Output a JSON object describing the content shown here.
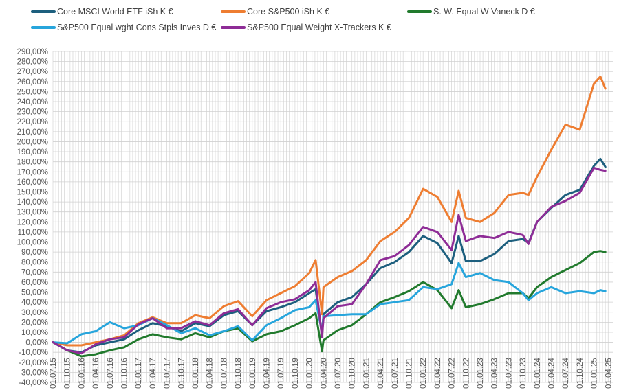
{
  "chart_data": {
    "type": "line",
    "title": "",
    "xlabel": "",
    "ylabel": "",
    "ylim": [
      -40,
      290
    ],
    "ystep": 10,
    "grid": true,
    "legend_position": "top",
    "x_unit": "quarter index from 01.07.15",
    "x_tick_labels": [
      "01.07.15",
      "01.10.15",
      "01.01.16",
      "01.04.16",
      "01.07.16",
      "01.10.16",
      "01.01.17",
      "01.04.17",
      "01.07.17",
      "01.10.17",
      "01.01.18",
      "01.04.18",
      "01.07.18",
      "01.10.18",
      "01.01.19",
      "01.04.19",
      "01.07.19",
      "01.10.19",
      "01.01.20",
      "01.04.20",
      "01.07.20",
      "01.10.20",
      "01.01.21",
      "01.04.21",
      "01.07.21",
      "01.10.21",
      "01.01.22",
      "01.04.22",
      "01.07.22",
      "01.10.22",
      "01.01.23",
      "01.04.23",
      "01.07.23",
      "01.10.23",
      "01.01.24",
      "01.04.24",
      "01.07.24",
      "01.10.24",
      "01.01.25",
      "01.04.25"
    ],
    "y_tick_labels": [
      "290,00%",
      "280,00%",
      "270,00%",
      "260,00%",
      "250,00%",
      "240,00%",
      "230,00%",
      "220,00%",
      "210,00%",
      "200,00%",
      "190,00%",
      "180,00%",
      "170,00%",
      "160,00%",
      "150,00%",
      "140,00%",
      "130,00%",
      "120,00%",
      "110,00%",
      "100,00%",
      "90,00%",
      "80,00%",
      "70,00%",
      "60,00%",
      "50,00%",
      "40,00%",
      "30,00%",
      "20,00%",
      "10,00%",
      "0,00%",
      "-10,00%",
      "-20,00%",
      "-30,00%",
      "-40,00%"
    ],
    "x": [
      0,
      1,
      2,
      3,
      4,
      5,
      6,
      7,
      8,
      9,
      10,
      11,
      12,
      13,
      14,
      15,
      16,
      17,
      18,
      18.45,
      18.9,
      19,
      20,
      21,
      22,
      23,
      24,
      25,
      26,
      27,
      28,
      28.5,
      29,
      30,
      31,
      32,
      33,
      33.4,
      34,
      35,
      36,
      37,
      38,
      38.45,
      38.8
    ],
    "series": [
      {
        "name": "Core MSCI World ETF iSh K €",
        "color": "#1d5f7e",
        "values": [
          0,
          -8,
          -10,
          -3,
          0,
          3,
          12,
          19,
          16,
          11,
          19,
          16,
          27,
          31,
          17,
          31,
          35,
          40,
          49,
          53,
          7,
          28,
          40,
          45,
          58,
          74,
          80,
          90,
          106,
          99,
          79,
          106,
          81,
          81,
          88,
          101,
          103,
          99,
          120,
          134,
          147,
          152,
          176,
          183,
          175
        ]
      },
      {
        "name": "Core S&P500 iSh K €",
        "color": "#ee7d31",
        "values": [
          0,
          -3,
          -3,
          0,
          3,
          7,
          19,
          25,
          19,
          19,
          27,
          24,
          36,
          41,
          26,
          42,
          49,
          56,
          69,
          82,
          28,
          55,
          65,
          71,
          82,
          101,
          110,
          124,
          153,
          145,
          120,
          151,
          124,
          120,
          129,
          147,
          149,
          147,
          165,
          192,
          217,
          212,
          258,
          265,
          253
        ]
      },
      {
        "name": "S. W. Equal W Vaneck D €",
        "color": "#217a2d",
        "values": [
          0,
          -8,
          -14,
          -12,
          -8,
          -5,
          3,
          8,
          5,
          3,
          9,
          5,
          11,
          14,
          1,
          8,
          11,
          17,
          24,
          29,
          -9,
          2,
          12,
          17,
          28,
          40,
          45,
          51,
          60,
          52,
          34,
          52,
          35,
          38,
          43,
          49,
          49,
          44,
          55,
          65,
          72,
          79,
          90,
          91,
          90
        ]
      },
      {
        "name": "S&P500 Equal wght Cons Stpls Inves D €",
        "color": "#27a5dc",
        "values": [
          0,
          -1,
          8,
          11,
          20,
          14,
          17,
          24,
          17,
          9,
          14,
          7,
          11,
          16,
          2,
          17,
          24,
          32,
          35,
          42,
          10,
          26,
          27,
          28,
          28,
          38,
          40,
          42,
          55,
          53,
          58,
          79,
          65,
          69,
          62,
          60,
          49,
          42,
          49,
          55,
          49,
          51,
          49,
          52,
          51
        ]
      },
      {
        "name": "S&P500 Equal Weight X-Trackers K €",
        "color": "#8e2c96",
        "values": [
          0,
          -8,
          -11,
          -2,
          3,
          5,
          18,
          24,
          14,
          14,
          21,
          17,
          29,
          33,
          17,
          34,
          40,
          43,
          52,
          60,
          5,
          24,
          36,
          38,
          58,
          82,
          86,
          97,
          115,
          110,
          92,
          127,
          101,
          106,
          104,
          110,
          107,
          98,
          120,
          135,
          141,
          149,
          174,
          172,
          171
        ]
      }
    ]
  }
}
